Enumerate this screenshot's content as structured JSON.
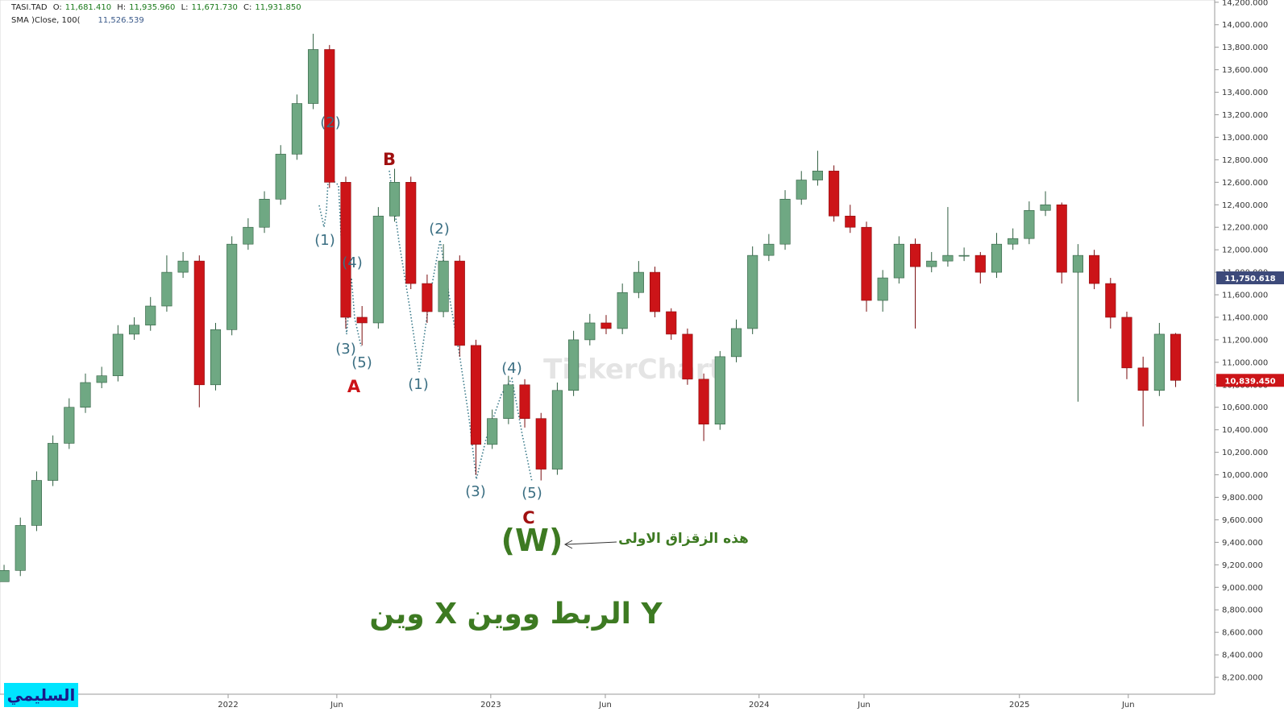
{
  "chart_data": {
    "type": "candlestick",
    "header": {
      "symbol": "TASI.TAD",
      "o_label": "O:",
      "open": "11,681.410",
      "h_label": "H:",
      "high": "11,935.960",
      "l_label": "L:",
      "low": "11,671.730",
      "c_label": "C:",
      "close": "11,931.850",
      "sma_label": "SMA )Close, 100(",
      "sma_value": "11,526.539"
    },
    "open": [
      9050,
      9150,
      9550,
      9950,
      10280,
      10600,
      10820,
      10880,
      11250,
      11330,
      11500,
      11800,
      11900,
      10800,
      11290,
      12050,
      12200,
      12450,
      12850,
      13300,
      13780,
      12600,
      11400,
      11350,
      12300,
      12600,
      11700,
      11450,
      11900,
      11150,
      10270,
      10500,
      10800,
      10500,
      10050,
      10750,
      11200,
      11350,
      11300,
      11620,
      11800,
      11450,
      11250,
      10850,
      10450,
      11050,
      11300,
      11950,
      12050,
      12450,
      12620,
      12700,
      12300,
      12200,
      11550,
      11750,
      12050,
      11850,
      11900,
      11950,
      11950,
      11800,
      12050,
      12100,
      12350,
      12400,
      11800,
      11950,
      11700,
      11400,
      10950,
      10750,
      11250
    ],
    "high": [
      9200,
      9620,
      10030,
      10350,
      10680,
      10900,
      10960,
      11330,
      11400,
      11580,
      11950,
      11980,
      11950,
      11350,
      12120,
      12280,
      12520,
      12930,
      13380,
      13920,
      13820,
      12650,
      11500,
      12380,
      12720,
      12650,
      11780,
      12050,
      11950,
      11200,
      10580,
      10880,
      10850,
      10550,
      10820,
      11280,
      11430,
      11420,
      11700,
      11900,
      11850,
      11480,
      11300,
      10900,
      11100,
      11380,
      12030,
      12140,
      12530,
      12700,
      12880,
      12750,
      12400,
      12250,
      11820,
      12120,
      12100,
      11980,
      12380,
      12020,
      11980,
      12150,
      12190,
      12430,
      12520,
      12420,
      12050,
      12000,
      11750,
      11450,
      11050,
      11350,
      11260
    ],
    "low": [
      9050,
      9100,
      9500,
      9900,
      10230,
      10550,
      10770,
      10830,
      11200,
      11280,
      11450,
      11750,
      10600,
      10750,
      11240,
      12000,
      12150,
      12400,
      12800,
      13250,
      12550,
      11300,
      11150,
      11300,
      12250,
      11650,
      11350,
      11400,
      11050,
      10000,
      10230,
      10450,
      10420,
      9950,
      10000,
      10700,
      11150,
      11250,
      11250,
      11570,
      11400,
      11200,
      10800,
      10300,
      10400,
      11000,
      11250,
      11900,
      12000,
      12400,
      12570,
      12250,
      12150,
      11450,
      11450,
      11700,
      11300,
      11800,
      11850,
      11900,
      11700,
      11750,
      12000,
      12050,
      12300,
      11700,
      10650,
      11650,
      11300,
      10850,
      10430,
      10700,
      10780
    ],
    "close": [
      9150,
      9550,
      9950,
      10280,
      10600,
      10820,
      10880,
      11250,
      11330,
      11500,
      11800,
      11900,
      10800,
      11290,
      12050,
      12200,
      12450,
      12850,
      13300,
      13780,
      12600,
      11400,
      11350,
      12300,
      12600,
      11700,
      11450,
      11900,
      11150,
      10270,
      10500,
      10800,
      10500,
      10050,
      10750,
      11200,
      11350,
      11300,
      11620,
      11800,
      11450,
      11250,
      10850,
      10450,
      11050,
      11300,
      11950,
      12050,
      12450,
      12620,
      12700,
      12300,
      12200,
      11550,
      11750,
      12050,
      11850,
      11900,
      11950,
      11950,
      11800,
      12050,
      12100,
      12350,
      12400,
      11800,
      11950,
      11700,
      11400,
      10950,
      10750,
      11250,
      10839.45
    ],
    "up_color": "#6fa883",
    "down_color": "#cc1418",
    "xlim": [
      -0.25,
      74.4
    ],
    "xticks": [
      {
        "value": 13.77,
        "label": "2022"
      },
      {
        "value": 20.45,
        "label": "Jun"
      },
      {
        "value": 29.91,
        "label": "2023"
      },
      {
        "value": 36.95,
        "label": "Jun"
      },
      {
        "value": 46.4,
        "label": "2024"
      },
      {
        "value": 52.85,
        "label": "Jun"
      },
      {
        "value": 62.4,
        "label": "2025"
      },
      {
        "value": 69.09,
        "label": "Jun"
      }
    ],
    "ylim": [
      8050,
      14220
    ],
    "yticks": [
      {
        "value": 8200,
        "label": "8,200.000"
      },
      {
        "value": 8400,
        "label": "8,400.000"
      },
      {
        "value": 8600,
        "label": "8,600.000"
      },
      {
        "value": 8800,
        "label": "8,800.000"
      },
      {
        "value": 9000,
        "label": "9,000.000"
      },
      {
        "value": 9200,
        "label": "9,200.000"
      },
      {
        "value": 9400,
        "label": "9,400.000"
      },
      {
        "value": 9600,
        "label": "9,600.000"
      },
      {
        "value": 9800,
        "label": "9,800.000"
      },
      {
        "value": 10000,
        "label": "10,000.000"
      },
      {
        "value": 10200,
        "label": "10,200.000"
      },
      {
        "value": 10400,
        "label": "10,400.000"
      },
      {
        "value": 10600,
        "label": "10,600.000"
      },
      {
        "value": 10800,
        "label": "10,800.000"
      },
      {
        "value": 11000,
        "label": "11,000.000"
      },
      {
        "value": 11200,
        "label": "11,200.000"
      },
      {
        "value": 11400,
        "label": "11,400.000"
      },
      {
        "value": 11600,
        "label": "11,600.000"
      },
      {
        "value": 11800,
        "label": "11,800.000"
      },
      {
        "value": 12000,
        "label": "12,000.000"
      },
      {
        "value": 12200,
        "label": "12,200.000"
      },
      {
        "value": 12400,
        "label": "12,400.000"
      },
      {
        "value": 12600,
        "label": "12,600.000"
      },
      {
        "value": 12800,
        "label": "12,800.000"
      },
      {
        "value": 13000,
        "label": "13,000.000"
      },
      {
        "value": 13200,
        "label": "13,200.000"
      },
      {
        "value": 13400,
        "label": "13,400.000"
      },
      {
        "value": 13600,
        "label": "13,600.000"
      },
      {
        "value": 13800,
        "label": "13,800.000"
      },
      {
        "value": 14000,
        "label": "14,000.000"
      },
      {
        "value": 14200,
        "label": "14,200.000"
      }
    ],
    "price_tags": [
      {
        "value": 11750.618,
        "label": "11,750.618",
        "color": "#3d4a7a"
      },
      {
        "value": 10839.45,
        "label": "10,839.450",
        "color": "#cc1418"
      }
    ],
    "watermark": "TickerChart",
    "annotations": [
      "(2)",
      "(1)",
      "(4)",
      "(3)",
      "(5)",
      "A",
      "B",
      "(1)",
      "(2)",
      "(4)",
      "(3)",
      "(5)",
      "C",
      "(W)",
      "هذه الزقزاق الاولى",
      "وين X الربط  ووين Y"
    ],
    "badge": "السليمي"
  }
}
